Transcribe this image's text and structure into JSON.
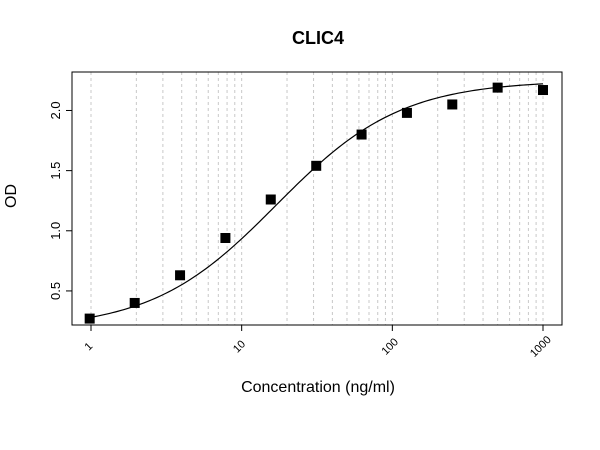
{
  "chart_data": {
    "type": "scatter",
    "title": "CLIC4",
    "xlabel": "Concentration (ng/ml)",
    "ylabel": "OD",
    "xscale": "log",
    "xlim": [
      1,
      1000
    ],
    "ylim": [
      0.25,
      2.27
    ],
    "xticks": [
      1,
      10,
      100,
      1000
    ],
    "xtick_labels": [
      "1",
      "10",
      "100",
      "1000"
    ],
    "yticks": [
      0.5,
      1.0,
      1.5,
      2.0
    ],
    "ytick_labels": [
      "0.5",
      "1.0",
      "1.5",
      "2.0"
    ],
    "grid": "vertical dashed at log minor ticks",
    "series": [
      {
        "marker": "square",
        "x": [
          0.98,
          1.95,
          3.9,
          7.8,
          15.6,
          31.25,
          62.5,
          125,
          250,
          500,
          1000
        ],
        "y": [
          0.27,
          0.4,
          0.63,
          0.94,
          1.26,
          1.54,
          1.8,
          1.98,
          2.05,
          2.19,
          2.17
        ]
      }
    ],
    "fit": {
      "type": "4PL",
      "params": {
        "bottom": 0.18,
        "top": 2.25,
        "ec50": 17.0,
        "hill": 1.05
      }
    }
  }
}
